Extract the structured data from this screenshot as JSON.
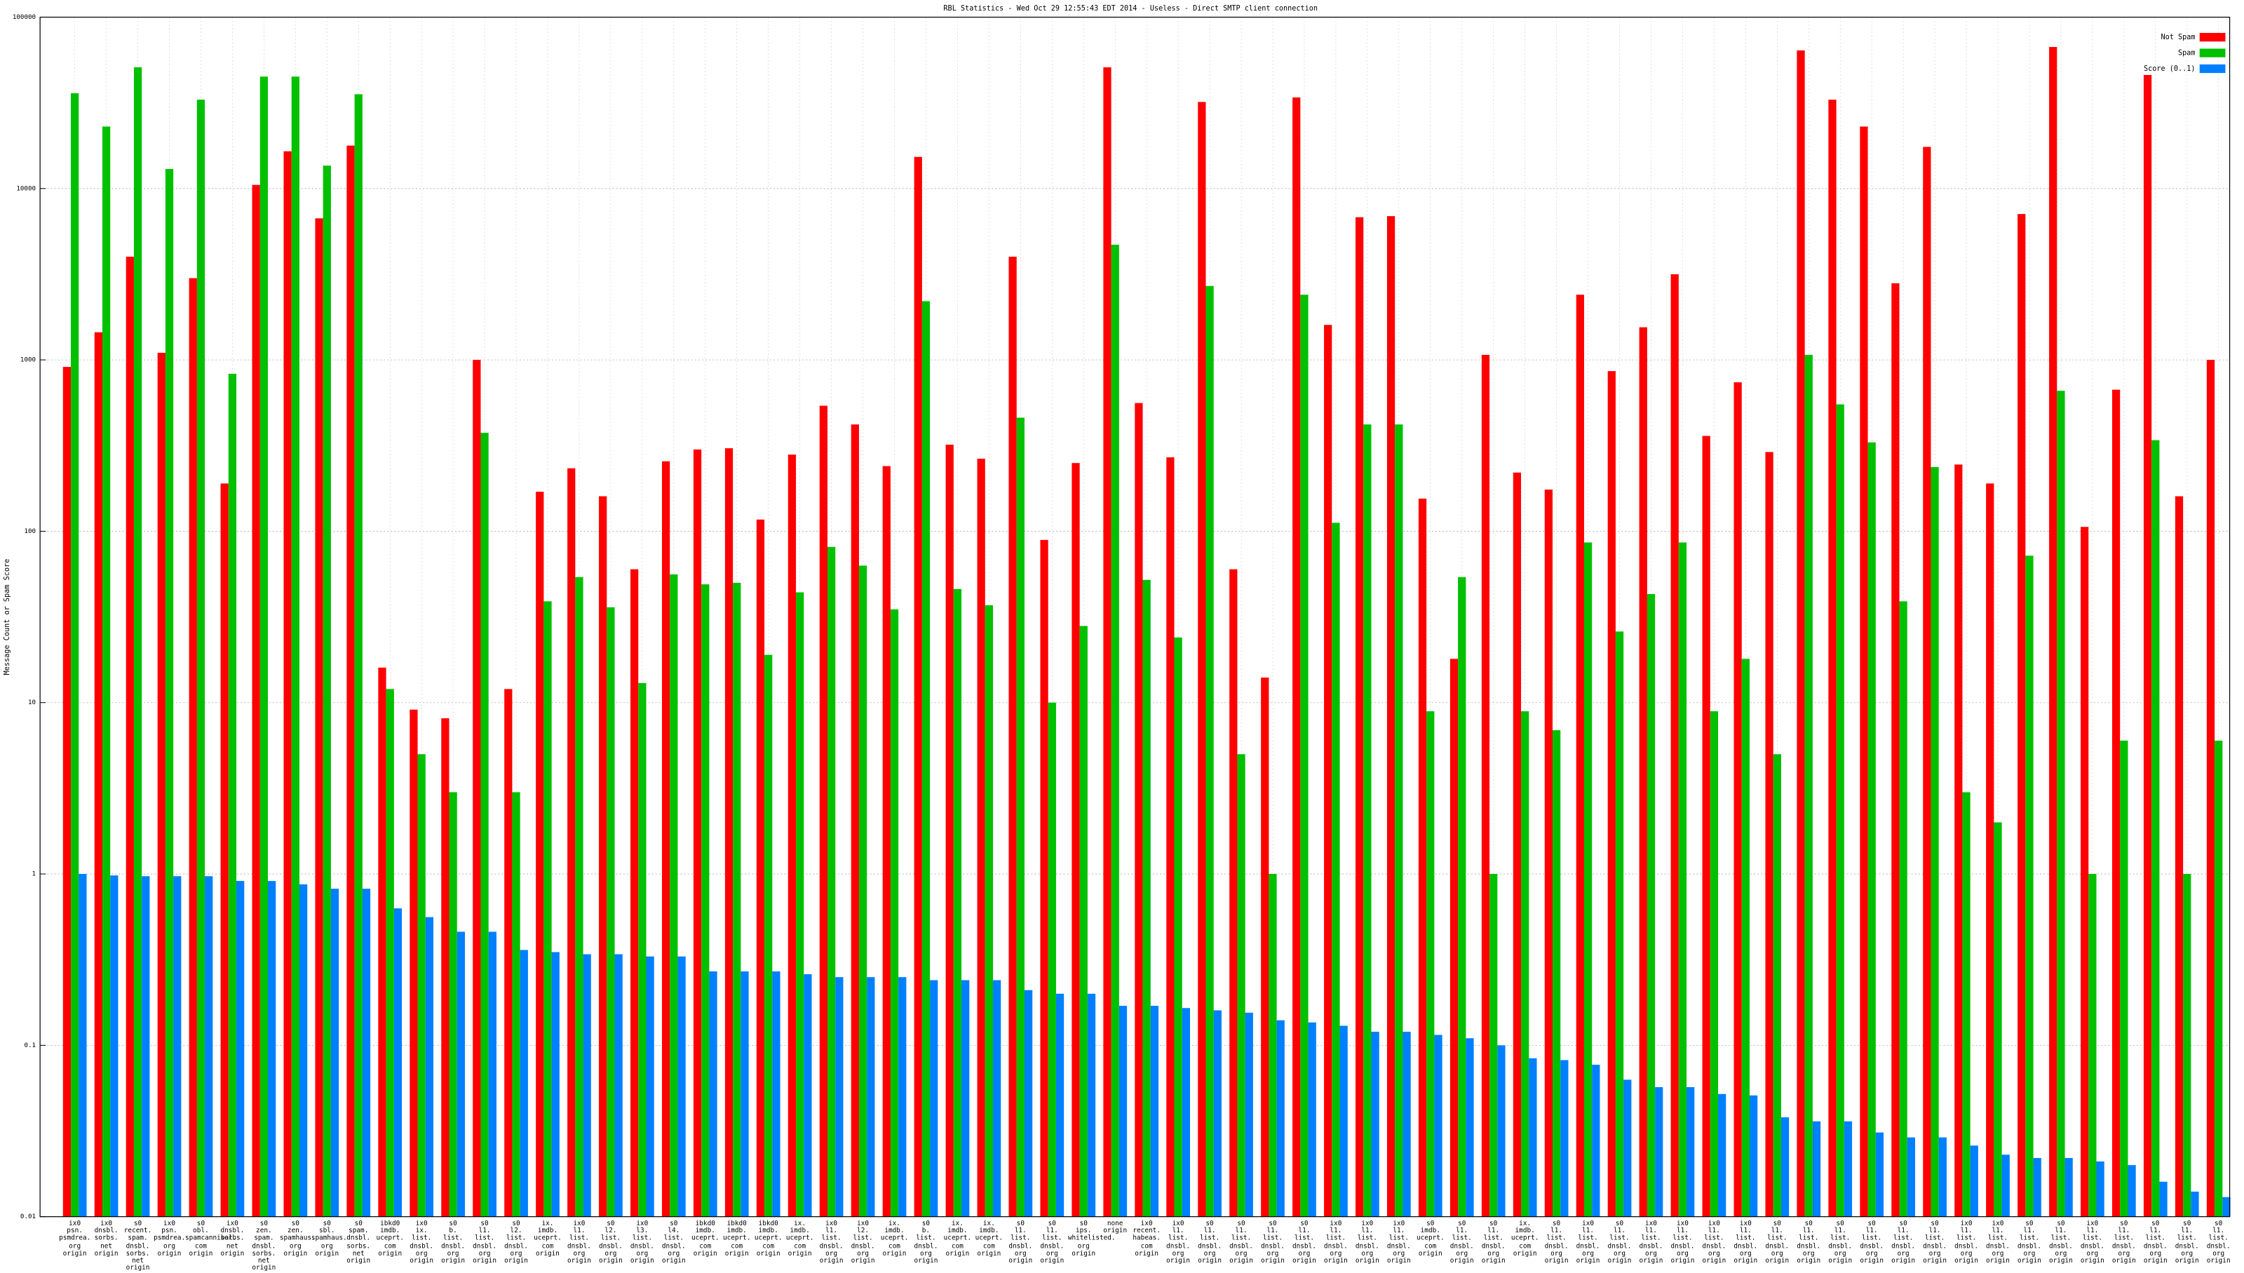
{
  "chart_data": {
    "type": "bar",
    "title": "RBL Statistics - Wed Oct 29 12:55:43 EDT 2014 - Useless - Direct SMTP client connection",
    "y_label": "Message Count or Spam Score",
    "log_scale": true,
    "grid": true,
    "legend": "top-right",
    "ylim": [
      0.01,
      100000
    ],
    "yticks": [
      0.01,
      0.1,
      1,
      10,
      100,
      1000,
      10000,
      100000
    ],
    "categories": [
      "ix0\npsn.\npsmdrea.\norg\norigin",
      "ix0\ndnsbl.\nsorbs.\nnet\norigin",
      "s0\nrecent.\nspam.\ndnsbl.\nsorbs.\nnet\norigin",
      "ix0\npsn.\npsmdrea.\norg\norigin",
      "s0\nobl.\nspamcannibal.\ncom\norigin",
      "ix0\ndnsbl.\nsorbs.\nnet\norigin",
      "s0\nzen.\nspam.\ndnsbl.\nsorbs.\nnet\norigin",
      "s0\nzen.\nspamhaus.\norg\norigin",
      "s0\nsbl.\nspamhaus.\norg\norigin",
      "s0\nspam.\ndnsbl.\nsorbs.\nnet\norigin",
      "ibkd0\nimdb.\nuceprt.\ncom\norigin",
      "ix0\nix.\nlist.\ndnsbl.\norg\norigin",
      "s0\nb.\nlist.\ndnsbl.\norg\norigin",
      "s0\nl1.\nlist.\ndnsbl.\norg\norigin",
      "s0\nl2.\nlist.\ndnsbl.\norg\norigin",
      "ix.\nimdb.\nuceprt.\ncom\norigin",
      "ix0\nl1.\nlist.\ndnsbl.\norg\norigin",
      "s0\nl2.\nlist.\ndnsbl.\norg\norigin",
      "ix0\nl3.\nlist.\ndnsbl.\norg\norigin",
      "s0\nl4.\nlist.\ndnsbl.\norg\norigin",
      "ibkd0\nimdb.\nuceprt.\ncom\norigin",
      "ibkd0\nimdb.\nuceprt.\ncom\norigin",
      "ibkd0\nimdb.\nuceprt.\ncom\norigin",
      "ix.\nimdb.\nuceprt.\ncom\norigin",
      "ix0\nl1.\nlist.\ndnsbl.\norg\norigin",
      "ix0\nl2.\nlist.\ndnsbl.\norg\norigin",
      "ix.\nimdb.\nuceprt.\ncom\norigin",
      "s0\nb.\nlist.\ndnsbl.\norg\norigin",
      "ix.\nimdb.\nuceprt.\ncom\norigin",
      "ix.\nimdb.\nuceprt.\ncom\norigin",
      "s0\nl1.\nlist.\ndnsbl.\norg\norigin",
      "s0\nl1.\nlist.\ndnsbl.\norg\norigin",
      "s0\nips.\nwhitelisted.\norg\norigin",
      "none\norigin",
      "ix0\nrecent.\nhabeas.\ncom\norigin",
      "ix0\nl1.\nlist.\ndnsbl.\norg\norigin",
      "s0\nl1.\nlist.\ndnsbl.\norg\norigin",
      "s0\nl1.\nlist.\ndnsbl.\norg\norigin",
      "s0\nl1.\nlist.\ndnsbl.\norg\norigin",
      "s0\nl1.\nlist.\ndnsbl.\norg\norigin",
      "ix0\nl1.\nlist.\ndnsbl.\norg\norigin",
      "ix0\nl1.\nlist.\ndnsbl.\norg\norigin",
      "ix0\nl1.\nlist.\ndnsbl.\norg\norigin",
      "s0\nimdb.\nuceprt.\ncom\norigin",
      "s0\nl1.\nlist.\ndnsbl.\norg\norigin",
      "s0\nl1.\nlist.\ndnsbl.\norg\norigin",
      "ix.\nimdb.\nuceprt.\ncom\norigin",
      "s0\nl1.\nlist.\ndnsbl.\norg\norigin",
      "ix0\nl1.\nlist.\ndnsbl.\norg\norigin",
      "s0\nl1.\nlist.\ndnsbl.\norg\norigin",
      "ix0\nl1.\nlist.\ndnsbl.\norg\norigin",
      "ix0\nl1.\nlist.\ndnsbl.\norg\norigin",
      "ix0\nl1.\nlist.\ndnsbl.\norg\norigin",
      "ix0\nl1.\nlist.\ndnsbl.\norg\norigin",
      "s0\nl1.\nlist.\ndnsbl.\norg\norigin",
      "s0\nl1.\nlist.\ndnsbl.\norg\norigin",
      "s0\nl1.\nlist.\ndnsbl.\norg\norigin",
      "s0\nl1.\nlist.\ndnsbl.\norg\norigin",
      "s0\nl1.\nlist.\ndnsbl.\norg\norigin",
      "s0\nl1.\nlist.\ndnsbl.\norg\norigin",
      "ix0\nl1.\nlist.\ndnsbl.\norg\norigin",
      "ix0\nl1.\nlist.\ndnsbl.\norg\norigin",
      "s0\nl1.\nlist.\ndnsbl.\norg\norigin",
      "s0\nl1.\nlist.\ndnsbl.\norg\norigin",
      "ix0\nl1.\nlist.\ndnsbl.\norg\norigin",
      "s0\nl1.\nlist.\ndnsbl.\norg\norigin",
      "s0\nl1.\nlist.\ndnsbl.\norg\norigin",
      "s0\nl1.\nlist.\ndnsbl.\norg\norigin",
      "s0\nl1.\nlist.\ndnsbl.\norg\norigin"
    ],
    "series": [
      {
        "name": "Not Spam",
        "color": "#ff0000",
        "values": [
          910,
          1450,
          4000,
          1100,
          3000,
          190,
          10500,
          16500,
          6700,
          17800,
          16,
          9.1,
          8.1,
          1000,
          12,
          170,
          233,
          160,
          60,
          256,
          300,
          305,
          117,
          280,
          540,
          420,
          240,
          15300,
          320,
          265,
          4000,
          89,
          250,
          51000,
          560,
          270,
          32000,
          60,
          14,
          34000,
          1600,
          6800,
          6900,
          155,
          18,
          1070,
          220,
          175,
          2400,
          860,
          1550,
          3160,
          360,
          740,
          290,
          64000,
          33000,
          23000,
          2800,
          17500,
          245,
          190,
          7100,
          67000,
          106,
          670,
          46000,
          160,
          1000
        ]
      },
      {
        "name": "Spam",
        "color": "#00c000",
        "values": [
          36000,
          23000,
          51000,
          13000,
          33000,
          830,
          45000,
          45000,
          13600,
          35500,
          12,
          5,
          3,
          375,
          3,
          39,
          54,
          36,
          13,
          56,
          49,
          50,
          19,
          44,
          81,
          63,
          35,
          2200,
          46,
          37,
          460,
          10,
          28,
          4700,
          52,
          24,
          2700,
          5,
          1,
          2400,
          112,
          420,
          420,
          8.9,
          54,
          1,
          8.9,
          6.9,
          86,
          26,
          43,
          86,
          8.9,
          18,
          5,
          1070,
          550,
          330,
          39,
          237,
          3,
          2,
          72,
          660,
          1,
          6,
          340,
          1,
          6
        ]
      },
      {
        "name": "Score (0..1)",
        "color": "#0080ff",
        "values": [
          1,
          0.98,
          0.97,
          0.97,
          0.97,
          0.91,
          0.91,
          0.87,
          0.82,
          0.82,
          0.63,
          0.56,
          0.46,
          0.46,
          0.36,
          0.35,
          0.34,
          0.34,
          0.33,
          0.33,
          0.27,
          0.27,
          0.27,
          0.26,
          0.25,
          0.25,
          0.25,
          0.24,
          0.24,
          0.24,
          0.21,
          0.2,
          0.2,
          0.17,
          0.17,
          0.165,
          0.16,
          0.155,
          0.14,
          0.136,
          0.13,
          0.12,
          0.12,
          0.115,
          0.11,
          0.1,
          0.084,
          0.082,
          0.077,
          0.063,
          0.057,
          0.057,
          0.052,
          0.051,
          0.038,
          0.036,
          0.036,
          0.031,
          0.029,
          0.029,
          0.026,
          0.023,
          0.022,
          0.022,
          0.021,
          0.02,
          0.016,
          0.014,
          0.013
        ]
      }
    ]
  }
}
